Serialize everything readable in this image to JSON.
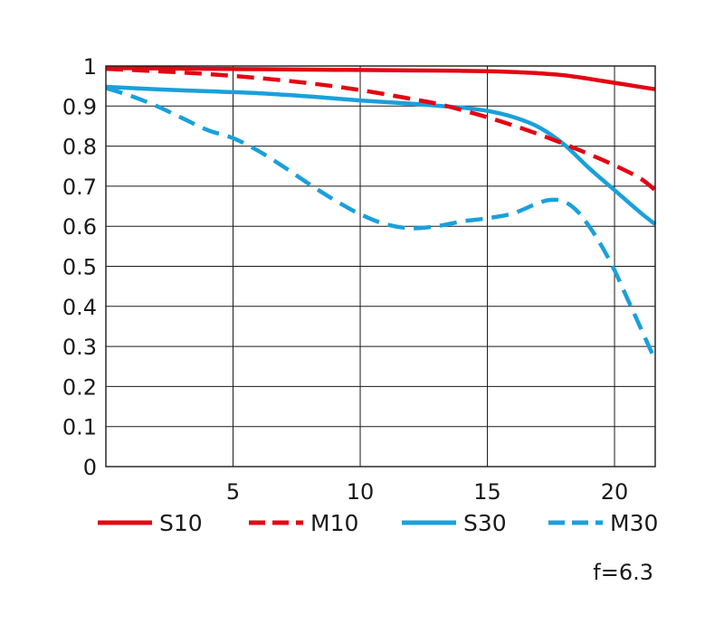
{
  "chart_data": {
    "type": "line",
    "title": "",
    "xlabel": "",
    "ylabel": "",
    "xlim": [
      0,
      21.6
    ],
    "ylim": [
      0,
      1
    ],
    "x_ticks": [
      5,
      10,
      15,
      20
    ],
    "x_tick_labels": [
      "5",
      "10",
      "15",
      "20"
    ],
    "y_ticks": [
      0,
      0.1,
      0.2,
      0.3,
      0.4,
      0.5,
      0.6,
      0.7,
      0.8,
      0.9,
      1
    ],
    "y_tick_labels": [
      "0",
      "0.1",
      "0.2",
      "0.3",
      "0.4",
      "0.5",
      "0.6",
      "0.7",
      "0.8",
      "0.9",
      "1"
    ],
    "grid": true,
    "legend_position": "bottom",
    "annotation": "f=6.3",
    "series": [
      {
        "name": "S10",
        "color": "#e30613",
        "dash": "solid",
        "points": [
          [
            0,
            0.995
          ],
          [
            2,
            0.994
          ],
          [
            4,
            0.993
          ],
          [
            6,
            0.992
          ],
          [
            8,
            0.991
          ],
          [
            10,
            0.99
          ],
          [
            12,
            0.989
          ],
          [
            14,
            0.988
          ],
          [
            15,
            0.987
          ],
          [
            16,
            0.985
          ],
          [
            17,
            0.982
          ],
          [
            18,
            0.977
          ],
          [
            19,
            0.968
          ],
          [
            20,
            0.958
          ],
          [
            21,
            0.948
          ],
          [
            21.6,
            0.942
          ]
        ]
      },
      {
        "name": "M10",
        "color": "#e30613",
        "dash": "dashed",
        "points": [
          [
            0,
            0.993
          ],
          [
            2,
            0.987
          ],
          [
            4,
            0.98
          ],
          [
            6,
            0.97
          ],
          [
            8,
            0.957
          ],
          [
            10,
            0.94
          ],
          [
            12,
            0.918
          ],
          [
            13,
            0.906
          ],
          [
            14,
            0.89
          ],
          [
            15,
            0.872
          ],
          [
            16,
            0.852
          ],
          [
            17,
            0.83
          ],
          [
            18,
            0.806
          ],
          [
            19,
            0.78
          ],
          [
            20,
            0.752
          ],
          [
            21,
            0.72
          ],
          [
            21.6,
            0.69
          ]
        ]
      },
      {
        "name": "S30",
        "color": "#1aa0db",
        "dash": "solid",
        "points": [
          [
            0,
            0.948
          ],
          [
            2,
            0.942
          ],
          [
            4,
            0.937
          ],
          [
            6,
            0.932
          ],
          [
            8,
            0.924
          ],
          [
            10,
            0.914
          ],
          [
            12,
            0.906
          ],
          [
            13,
            0.901
          ],
          [
            14,
            0.896
          ],
          [
            15,
            0.888
          ],
          [
            16,
            0.873
          ],
          [
            17,
            0.848
          ],
          [
            18,
            0.805
          ],
          [
            19,
            0.745
          ],
          [
            20,
            0.69
          ],
          [
            21,
            0.635
          ],
          [
            21.6,
            0.605
          ]
        ]
      },
      {
        "name": "M30",
        "color": "#1aa0db",
        "dash": "dashed",
        "points": [
          [
            0,
            0.945
          ],
          [
            1,
            0.925
          ],
          [
            2,
            0.9
          ],
          [
            3,
            0.87
          ],
          [
            4,
            0.84
          ],
          [
            5,
            0.82
          ],
          [
            6,
            0.788
          ],
          [
            7,
            0.748
          ],
          [
            8,
            0.705
          ],
          [
            9,
            0.665
          ],
          [
            10,
            0.63
          ],
          [
            11,
            0.605
          ],
          [
            12,
            0.595
          ],
          [
            13,
            0.6
          ],
          [
            14,
            0.612
          ],
          [
            15,
            0.62
          ],
          [
            16,
            0.632
          ],
          [
            17,
            0.658
          ],
          [
            17.5,
            0.666
          ],
          [
            18,
            0.662
          ],
          [
            18.5,
            0.64
          ],
          [
            19,
            0.6
          ],
          [
            19.5,
            0.55
          ],
          [
            20,
            0.49
          ],
          [
            20.5,
            0.42
          ],
          [
            21,
            0.35
          ],
          [
            21.6,
            0.265
          ]
        ]
      }
    ]
  }
}
